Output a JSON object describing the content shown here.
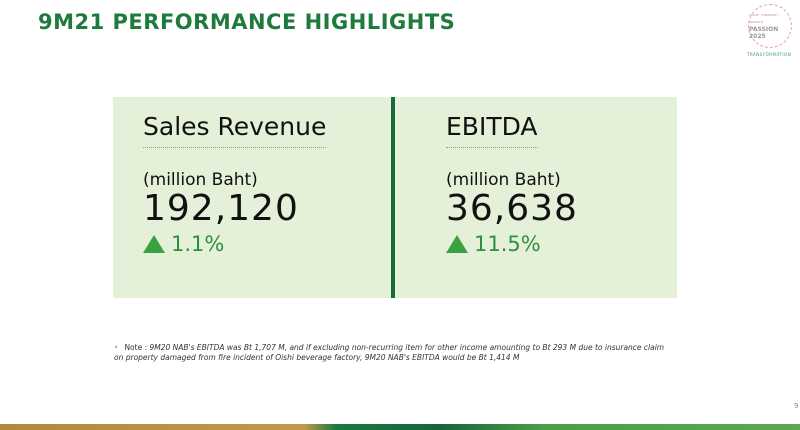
{
  "title": "9M21 PERFORMANCE HIGHLIGHTS",
  "logo": {
    "text": "PASSION 2025",
    "top": "VALUE · STRENGTH · GROWTH",
    "bottom": "TRANSFORMATION"
  },
  "metrics": [
    {
      "label": "Sales Revenue",
      "unit": "(million Baht)",
      "value": "192,120",
      "change": "1.1%",
      "direction": "up"
    },
    {
      "label": "EBITDA",
      "unit": "(million Baht)",
      "value": "36,638",
      "change": "11.5%",
      "direction": "up"
    }
  ],
  "note": {
    "prefix": "Note :",
    "text": "9M20 NAB's EBITDA was Bt 1,707 M, and if excluding non-recurring item for other income amounting to Bt 293 M due to insurance claim on property damaged from fire incident of Oishi beverage factory, 9M20 NAB's EBITDA would be Bt 1,414 M"
  },
  "page_number": "9",
  "colors": {
    "accent": "#1f7a3e",
    "panel": "#e5f0d8",
    "up": "#3aa33f"
  }
}
